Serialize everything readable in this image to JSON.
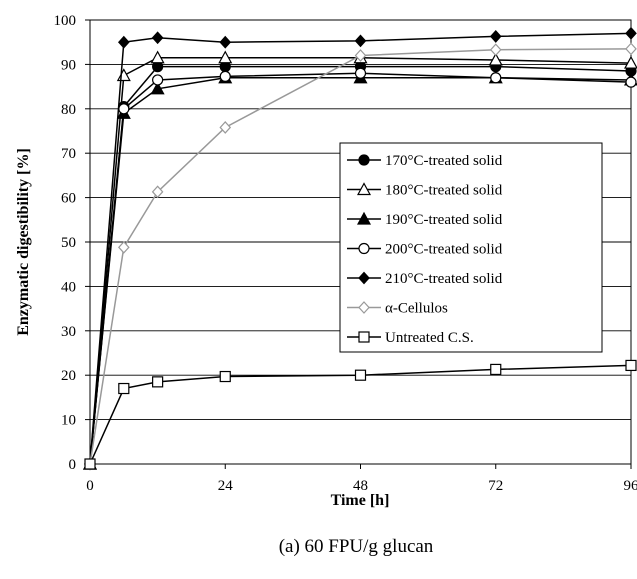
{
  "chart_data": {
    "type": "line",
    "title": "",
    "caption": "(a) 60 FPU/g glucan",
    "xlabel": "Time [h]",
    "ylabel": "Enzymatic digestibility [%]",
    "xlim": [
      0,
      96
    ],
    "ylim": [
      0,
      100
    ],
    "xticks": [
      0,
      24,
      48,
      72,
      96
    ],
    "yticks": [
      0,
      10,
      20,
      30,
      40,
      50,
      60,
      70,
      80,
      90,
      100
    ],
    "grid": "horizontal",
    "legend_position": "right-center",
    "x": [
      0,
      6,
      12,
      24,
      48,
      72,
      96
    ],
    "series": [
      {
        "name": "170°C-treated solid",
        "marker": "circle-filled",
        "color": "#000000",
        "values": [
          0,
          80.5,
          89.5,
          89.5,
          89.5,
          89.5,
          88.5
        ]
      },
      {
        "name": "180°C-treated solid",
        "marker": "triangle-open",
        "color": "#000000",
        "values": [
          0,
          87.5,
          91.5,
          91.5,
          91.5,
          91.0,
          90.3
        ]
      },
      {
        "name": "190°C-treated solid",
        "marker": "triangle-filled",
        "color": "#000000",
        "values": [
          0,
          79.0,
          84.5,
          87.0,
          87.0,
          87.0,
          86.5
        ]
      },
      {
        "name": "200°C-treated solid",
        "marker": "circle-open",
        "color": "#000000",
        "values": [
          0,
          80.0,
          86.5,
          87.3,
          88.0,
          87.0,
          86.0
        ]
      },
      {
        "name": "210°C-treated solid",
        "marker": "diamond-filled",
        "color": "#000000",
        "values": [
          0,
          95.0,
          96.0,
          95.0,
          95.3,
          96.3,
          97.0
        ]
      },
      {
        "name": "α-Cellulos",
        "marker": "diamond-open",
        "color": "#999999",
        "values": [
          0,
          48.8,
          61.3,
          75.8,
          92.0,
          93.3,
          93.5
        ]
      },
      {
        "name": "Untreated C.S.",
        "marker": "square-open",
        "color": "#000000",
        "values": [
          0,
          17.0,
          18.5,
          19.7,
          20.0,
          21.3,
          22.2
        ]
      }
    ]
  }
}
